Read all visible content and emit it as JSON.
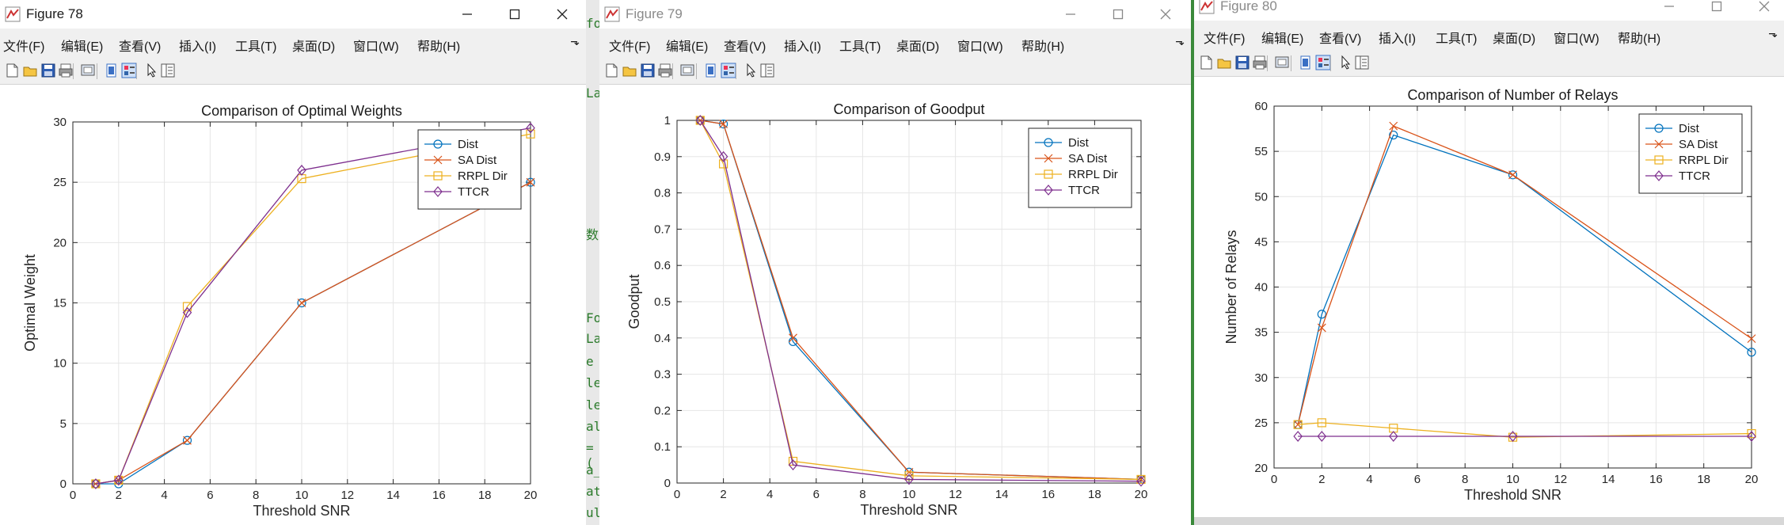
{
  "menu_labels": [
    "文件(F)",
    "编辑(E)",
    "查看(V)",
    "插入(I)",
    "工具(T)",
    "桌面(D)",
    "窗口(W)",
    "帮助(H)"
  ],
  "menu_overflow_glyph": "⬎",
  "windows": [
    {
      "title": "Figure 78",
      "active": true,
      "chart": {
        "type": "line",
        "title": "Comparison of Optimal Weights",
        "xlabel": "Threshold SNR",
        "ylabel": "Optimal Weight",
        "xlim": [
          0,
          20
        ],
        "ylim": [
          0,
          30
        ],
        "xticks": [
          0,
          2,
          4,
          6,
          8,
          10,
          12,
          14,
          16,
          18,
          20
        ],
        "yticks": [
          0,
          5,
          10,
          15,
          20,
          25,
          30
        ],
        "grid": true,
        "legend_position": "top-right",
        "x": [
          1,
          2,
          5,
          10,
          20
        ],
        "series": [
          {
            "name": "Dist",
            "marker": "circle",
            "color": "#0072BD",
            "values": [
              0,
              0,
              3.6,
              15,
              25
            ]
          },
          {
            "name": "SA Dist",
            "marker": "x",
            "color": "#D95319",
            "values": [
              0,
              0.3,
              3.6,
              15,
              25
            ]
          },
          {
            "name": "RRPL Dir",
            "marker": "square",
            "color": "#EDB120",
            "values": [
              0,
              0.3,
              14.7,
              25.3,
              29
            ]
          },
          {
            "name": "TTCR",
            "marker": "diamond",
            "color": "#7E2F8E",
            "values": [
              0,
              0.3,
              14.2,
              26,
              29.5
            ]
          }
        ]
      }
    },
    {
      "title": "Figure 79",
      "active": false,
      "chart": {
        "type": "line",
        "title": "Comparison of Goodput",
        "xlabel": "Threshold SNR",
        "ylabel": "Goodput",
        "xlim": [
          0,
          20
        ],
        "ylim": [
          0,
          1
        ],
        "xticks": [
          0,
          2,
          4,
          6,
          8,
          10,
          12,
          14,
          16,
          18,
          20
        ],
        "yticks": [
          0,
          0.1,
          0.2,
          0.3,
          0.4,
          0.5,
          0.6,
          0.7,
          0.8,
          0.9,
          1
        ],
        "grid": true,
        "legend_position": "top-right",
        "x": [
          1,
          2,
          5,
          10,
          20
        ],
        "series": [
          {
            "name": "Dist",
            "marker": "circle",
            "color": "#0072BD",
            "values": [
              1,
              0.99,
              0.39,
              0.03,
              0.01
            ]
          },
          {
            "name": "SA Dist",
            "marker": "x",
            "color": "#D95319",
            "values": [
              1,
              0.99,
              0.4,
              0.03,
              0.01
            ]
          },
          {
            "name": "RRPL Dir",
            "marker": "square",
            "color": "#EDB120",
            "values": [
              1,
              0.88,
              0.06,
              0.02,
              0.01
            ]
          },
          {
            "name": "TTCR",
            "marker": "diamond",
            "color": "#7E2F8E",
            "values": [
              1,
              0.9,
              0.05,
              0.01,
              0.005
            ]
          }
        ]
      }
    },
    {
      "title": "Figure 80",
      "active": false,
      "chart": {
        "type": "line",
        "title": "Comparison of Number of Relays",
        "xlabel": "Threshold SNR",
        "ylabel": "Number of Relays",
        "xlim": [
          0,
          20
        ],
        "ylim": [
          20,
          60
        ],
        "xticks": [
          0,
          2,
          4,
          6,
          8,
          10,
          12,
          14,
          16,
          18,
          20
        ],
        "yticks": [
          20,
          25,
          30,
          35,
          40,
          45,
          50,
          55,
          60
        ],
        "grid": true,
        "legend_position": "top-right",
        "x": [
          1,
          2,
          5,
          10,
          20
        ],
        "series": [
          {
            "name": "Dist",
            "marker": "circle",
            "color": "#0072BD",
            "values": [
              24.8,
              37,
              56.8,
              52.4,
              32.8
            ]
          },
          {
            "name": "SA Dist",
            "marker": "x",
            "color": "#D95319",
            "values": [
              24.8,
              35.5,
              57.8,
              52.4,
              34.3
            ]
          },
          {
            "name": "RRPL Dir",
            "marker": "square",
            "color": "#EDB120",
            "values": [
              24.8,
              25,
              24.4,
              23.4,
              23.8
            ]
          },
          {
            "name": "TTCR",
            "marker": "diamond",
            "color": "#7E2F8E",
            "values": [
              23.5,
              23.5,
              23.5,
              23.5,
              23.5
            ]
          }
        ]
      }
    }
  ],
  "background_code_fragments": [
    "fo",
    "Fo",
    "Lat",
    "e",
    "le",
    "le",
    "all",
    "=(",
    "a_",
    "att",
    "ul"
  ],
  "background_code_char": "数",
  "toolbar_icons": [
    "new-figure-icon",
    "open-file-icon",
    "save-icon",
    "print-icon",
    "link-plot-icon",
    "hide-plot-tools-icon",
    "show-plot-tools-icon",
    "edit-plot-icon",
    "property-inspector-icon"
  ],
  "window_controls": [
    "minimize-icon",
    "maximize-icon",
    "close-icon"
  ]
}
